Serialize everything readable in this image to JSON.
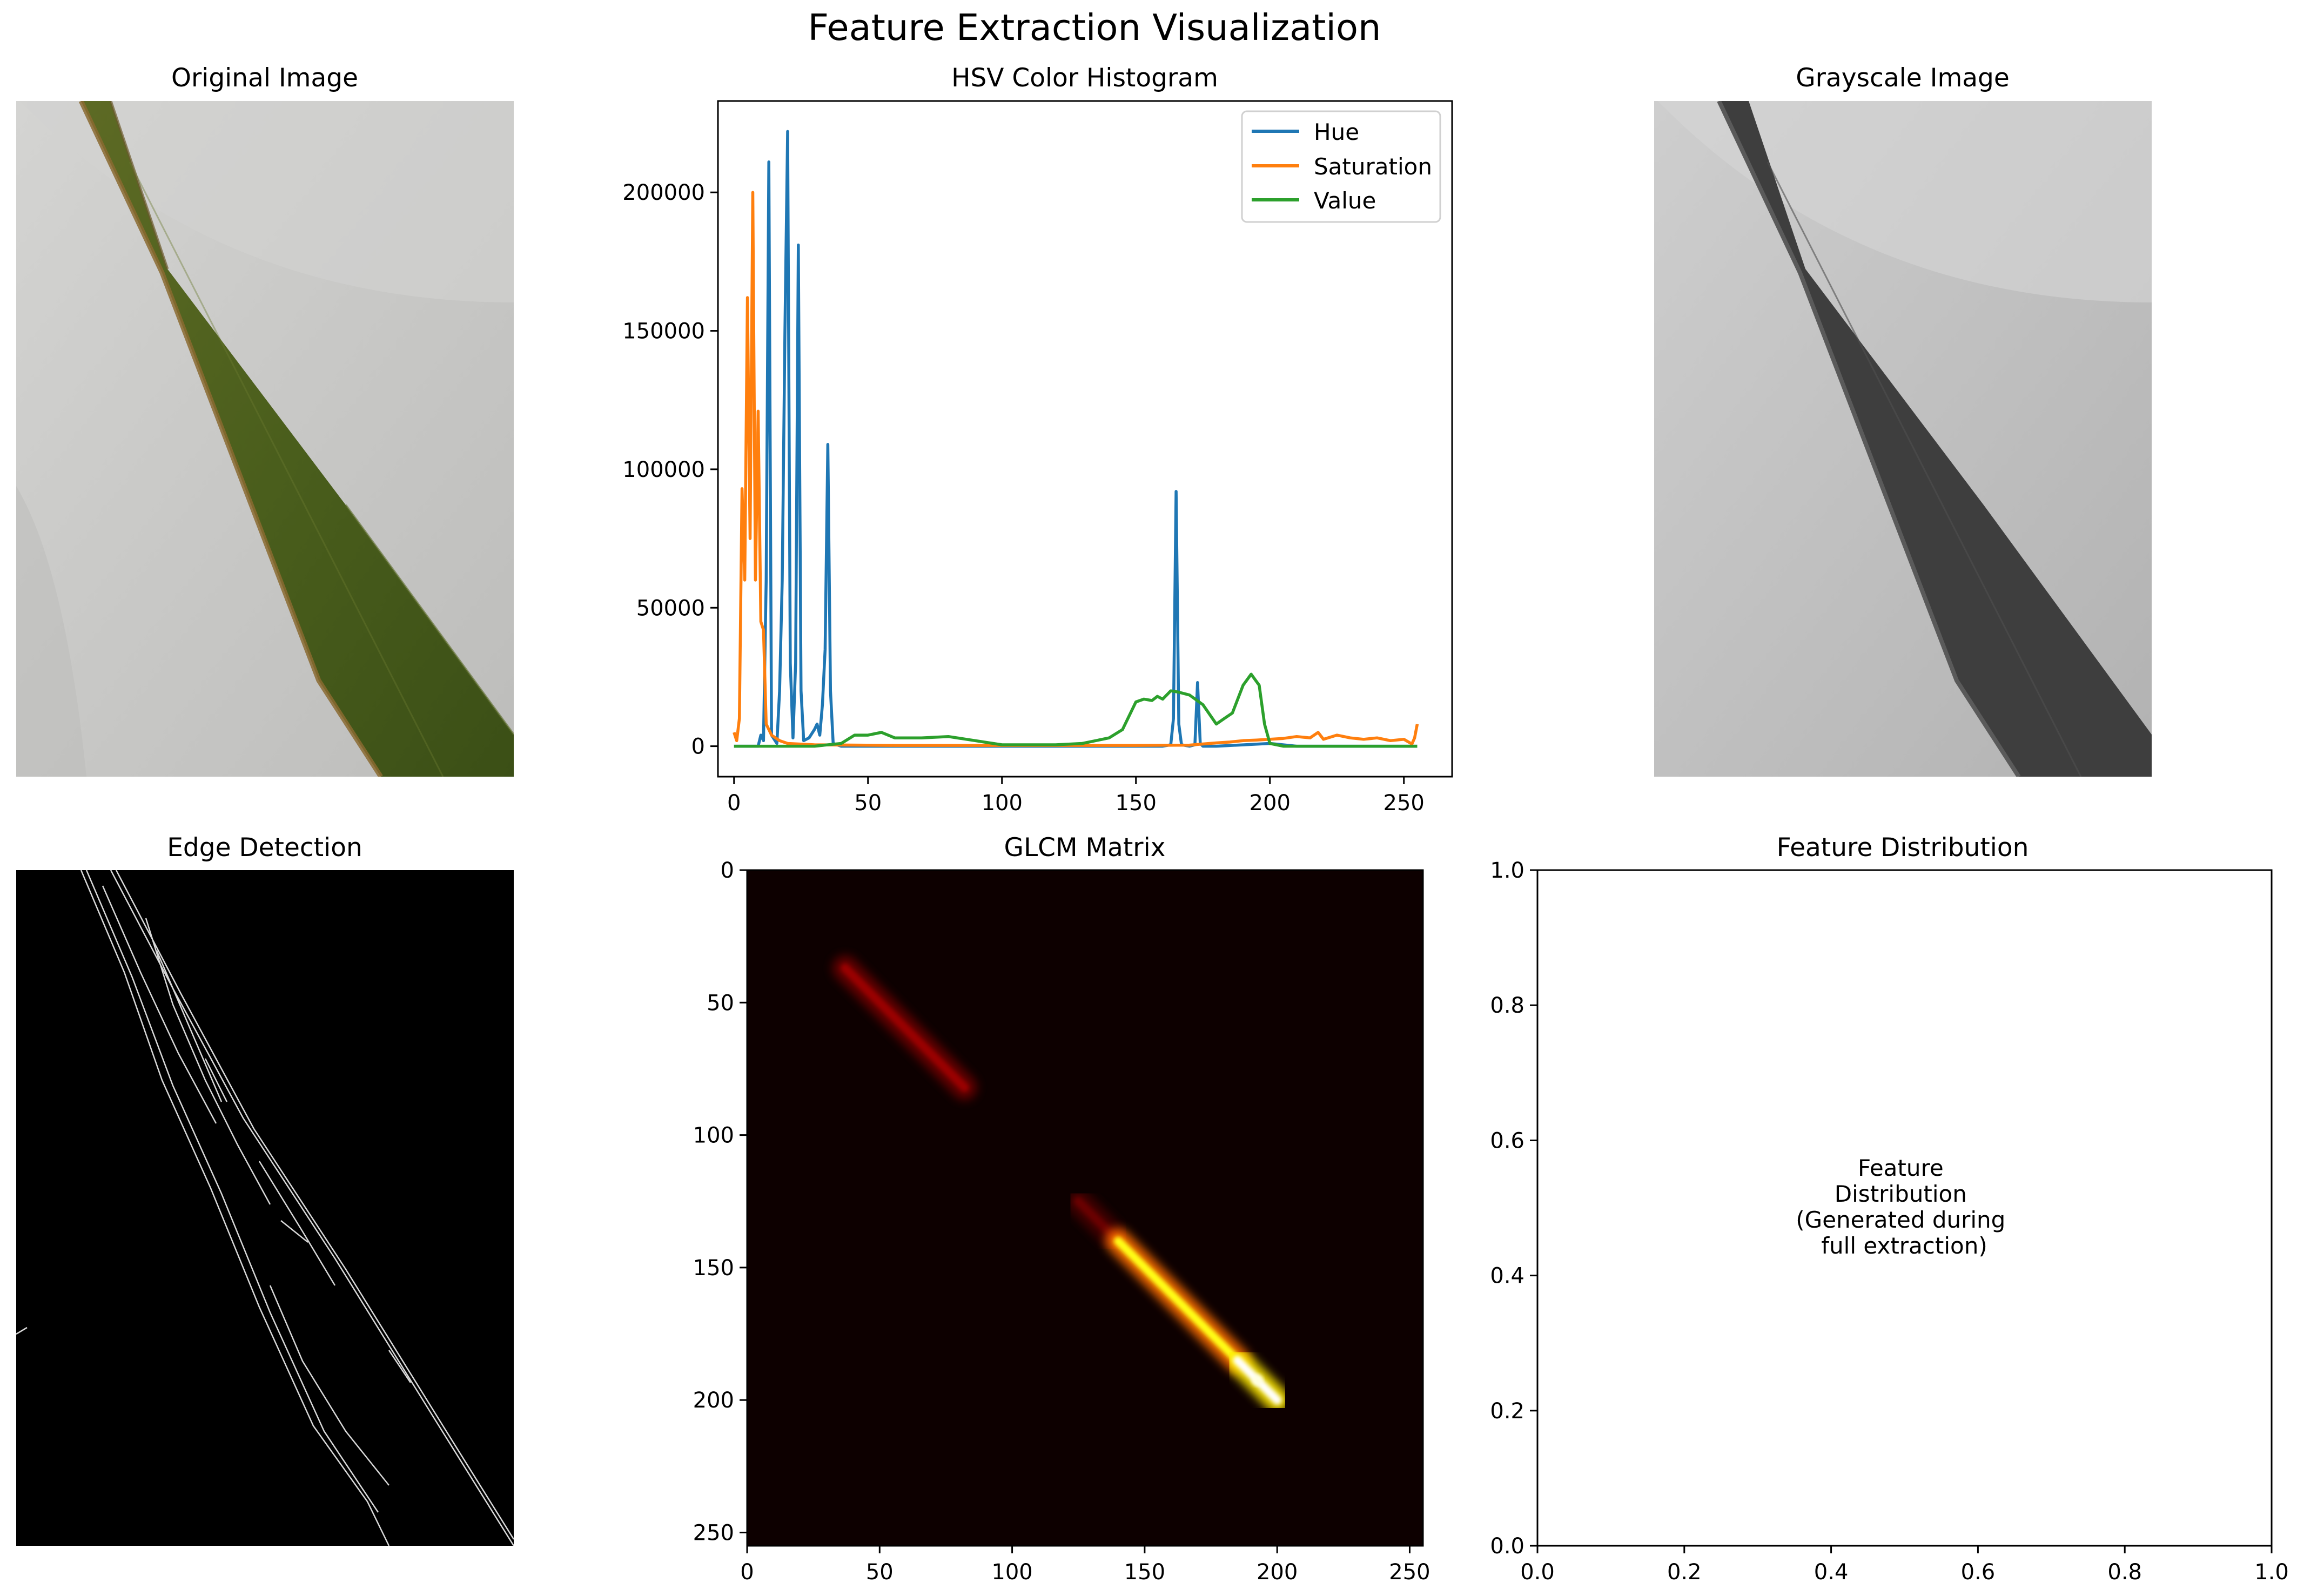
{
  "figure": {
    "title": "Feature Extraction Visualization"
  },
  "panels": {
    "original": {
      "title": "Original Image"
    },
    "histogram": {
      "title": "HSV Color Histogram"
    },
    "grayscale": {
      "title": "Grayscale Image"
    },
    "edges": {
      "title": "Edge Detection"
    },
    "glcm": {
      "title": "GLCM Matrix"
    },
    "distribution": {
      "title": "Feature Distribution",
      "note_lines": [
        "Feature",
        "Distribution",
        "(Generated during",
        "full extraction)"
      ]
    }
  },
  "colors": {
    "hue": "#1f77b4",
    "saturation": "#ff7f0e",
    "value": "#2ca02c",
    "leaf_green": "#4a5e1c",
    "paper": "#c9c9c7",
    "glcm_bg": "#0d0000"
  },
  "chart_data": [
    {
      "type": "line",
      "panel": "histogram",
      "title": "HSV Color Histogram",
      "xlim": [
        -6,
        268
      ],
      "ylim": [
        -11000,
        233000
      ],
      "xticks": [
        0,
        50,
        100,
        150,
        200,
        250
      ],
      "yticks": [
        0,
        50000,
        100000,
        150000,
        200000
      ],
      "legend": "top-right",
      "series": [
        {
          "name": "Hue",
          "x": [
            0,
            9,
            10,
            11,
            12,
            13,
            14,
            16,
            17,
            18,
            19,
            20,
            21,
            22,
            23,
            24,
            25,
            26,
            28,
            30,
            31,
            32,
            33,
            34,
            35,
            36,
            37,
            40,
            60,
            100,
            160,
            163,
            164,
            165,
            166,
            167,
            170,
            172,
            173,
            174,
            175,
            180,
            200,
            210,
            255
          ],
          "y": [
            0,
            0,
            4000,
            2000,
            60000,
            211000,
            4000,
            1000,
            20000,
            60000,
            150000,
            222000,
            30000,
            3000,
            30000,
            181000,
            20000,
            2000,
            3000,
            6000,
            8000,
            4000,
            15000,
            35000,
            109000,
            20000,
            1000,
            0,
            0,
            0,
            0,
            500,
            10000,
            92000,
            8000,
            500,
            0,
            500,
            23000,
            1000,
            0,
            0,
            1000,
            0,
            0
          ]
        },
        {
          "name": "Saturation",
          "x": [
            0,
            1,
            2,
            3,
            4,
            5,
            6,
            7,
            8,
            9,
            10,
            11,
            12,
            14,
            17,
            20,
            30,
            60,
            100,
            150,
            170,
            175,
            180,
            185,
            190,
            195,
            200,
            205,
            210,
            215,
            218,
            220,
            225,
            230,
            235,
            240,
            245,
            250,
            253,
            254,
            255
          ],
          "y": [
            5000,
            2000,
            10000,
            93000,
            60000,
            162000,
            75000,
            200000,
            60000,
            121000,
            45000,
            42000,
            8000,
            4000,
            2000,
            1000,
            500,
            300,
            300,
            300,
            400,
            800,
            1200,
            1500,
            2000,
            2200,
            2500,
            2800,
            3500,
            3000,
            5000,
            2500,
            4000,
            3000,
            2500,
            3000,
            2000,
            2500,
            800,
            3000,
            8000
          ]
        },
        {
          "name": "Value",
          "x": [
            0,
            30,
            40,
            45,
            50,
            55,
            60,
            70,
            80,
            90,
            100,
            110,
            120,
            130,
            140,
            145,
            150,
            153,
            156,
            158,
            160,
            163,
            166,
            170,
            175,
            180,
            183,
            186,
            190,
            193,
            196,
            198,
            200,
            205,
            210,
            255
          ],
          "y": [
            0,
            0,
            1000,
            4000,
            4000,
            5000,
            3000,
            3000,
            3500,
            2000,
            500,
            500,
            500,
            1000,
            3000,
            6000,
            16000,
            17000,
            16500,
            18000,
            17000,
            20000,
            19500,
            18500,
            15000,
            8000,
            10000,
            12000,
            22000,
            26000,
            22000,
            8000,
            1000,
            0,
            0,
            0
          ]
        }
      ]
    },
    {
      "type": "heatmap",
      "panel": "glcm",
      "title": "GLCM Matrix",
      "xlim": [
        0,
        255
      ],
      "ylim": [
        255,
        0
      ],
      "xticks": [
        0,
        50,
        100,
        150,
        200,
        250
      ],
      "yticks": [
        0,
        50,
        100,
        150,
        200,
        250
      ],
      "colormap": "hot",
      "diagonal_segments": [
        {
          "from": 37,
          "to": 82,
          "intensity": 0.22
        },
        {
          "from": 125,
          "to": 140,
          "intensity": 0.15
        },
        {
          "from": 140,
          "to": 185,
          "intensity": 0.75
        },
        {
          "from": 185,
          "to": 200,
          "intensity": 1.0
        }
      ]
    },
    {
      "type": "scatter",
      "panel": "distribution",
      "title": "Feature Distribution",
      "xlim": [
        0,
        1
      ],
      "ylim": [
        0,
        1
      ],
      "xticks": [
        0.0,
        0.2,
        0.4,
        0.6,
        0.8,
        1.0
      ],
      "yticks": [
        0.0,
        0.2,
        0.4,
        0.6,
        0.8,
        1.0
      ],
      "x": [],
      "y": []
    }
  ]
}
